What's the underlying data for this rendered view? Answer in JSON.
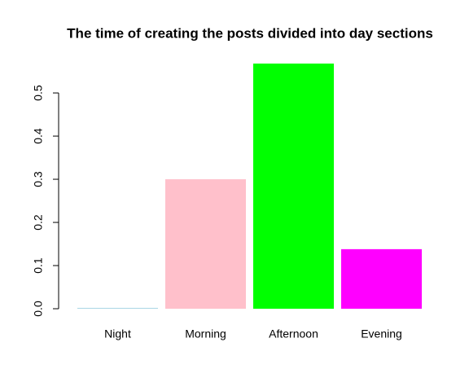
{
  "chart_data": {
    "type": "bar",
    "title": "The time of creating the posts divided into day sections",
    "categories": [
      "Night",
      "Morning",
      "Afternoon",
      "Evening"
    ],
    "values": [
      0.002,
      0.3,
      0.568,
      0.138
    ],
    "colors": [
      "#add8e6",
      "#ffc0cb",
      "#00ff00",
      "#ff00ff"
    ],
    "ylim": [
      0,
      0.57
    ],
    "yticks": [
      {
        "value": 0,
        "label": "0.0"
      },
      0.1,
      0.2,
      0.3,
      0.4,
      0.5
    ],
    "grid": false
  }
}
